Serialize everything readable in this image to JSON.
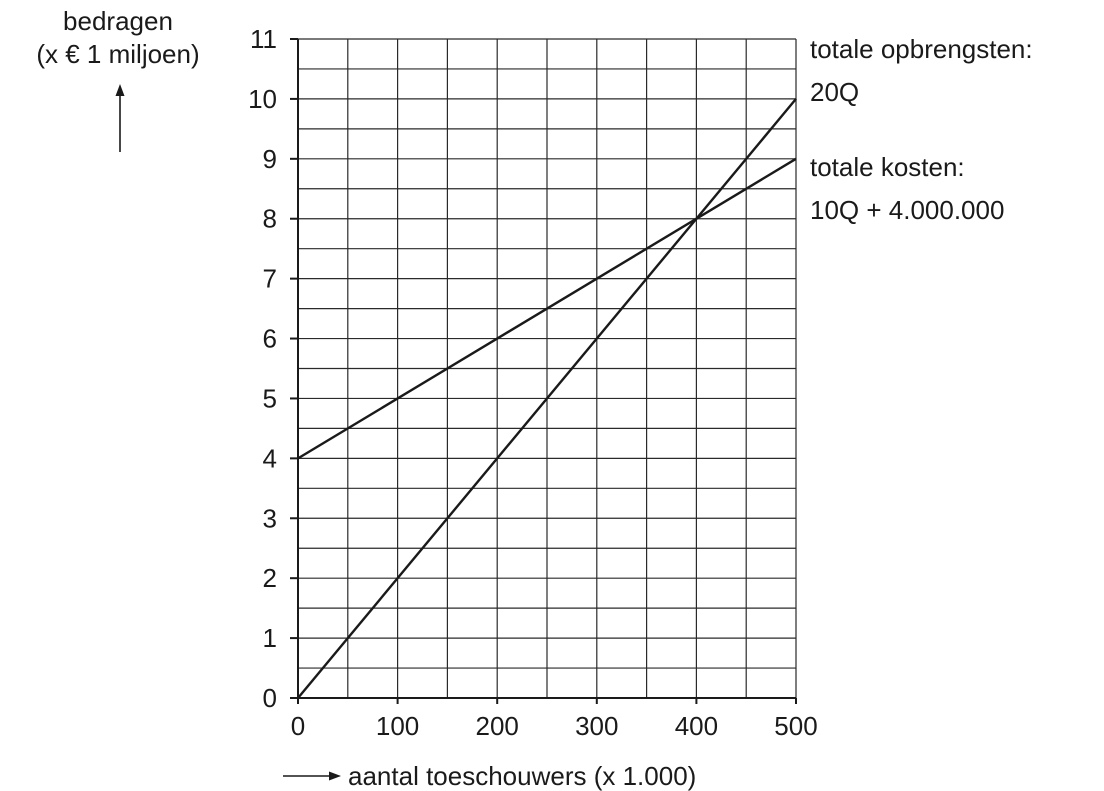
{
  "chart_data": {
    "type": "line",
    "ylabel_line1": "bedragen",
    "ylabel_line2": "(x € 1 miljoen)",
    "xlabel": "aantal toeschouwers (x 1.000)",
    "xlim": [
      0,
      500
    ],
    "ylim": [
      0,
      11
    ],
    "x_ticks": [
      "0",
      "100",
      "200",
      "300",
      "400",
      "500"
    ],
    "y_ticks": [
      "0",
      "1",
      "2",
      "3",
      "4",
      "5",
      "6",
      "7",
      "8",
      "9",
      "10",
      "11"
    ],
    "x_grid_step": 50,
    "y_grid_step": 0.5,
    "grid": true,
    "series": [
      {
        "label_line1": "totale opbrengsten:",
        "label_line2": "20Q",
        "x": [
          0,
          500
        ],
        "y": [
          0,
          10
        ]
      },
      {
        "label_line1": "totale kosten:",
        "label_line2": "10Q + 4.000.000",
        "x": [
          0,
          500
        ],
        "y": [
          4,
          9
        ]
      }
    ]
  }
}
